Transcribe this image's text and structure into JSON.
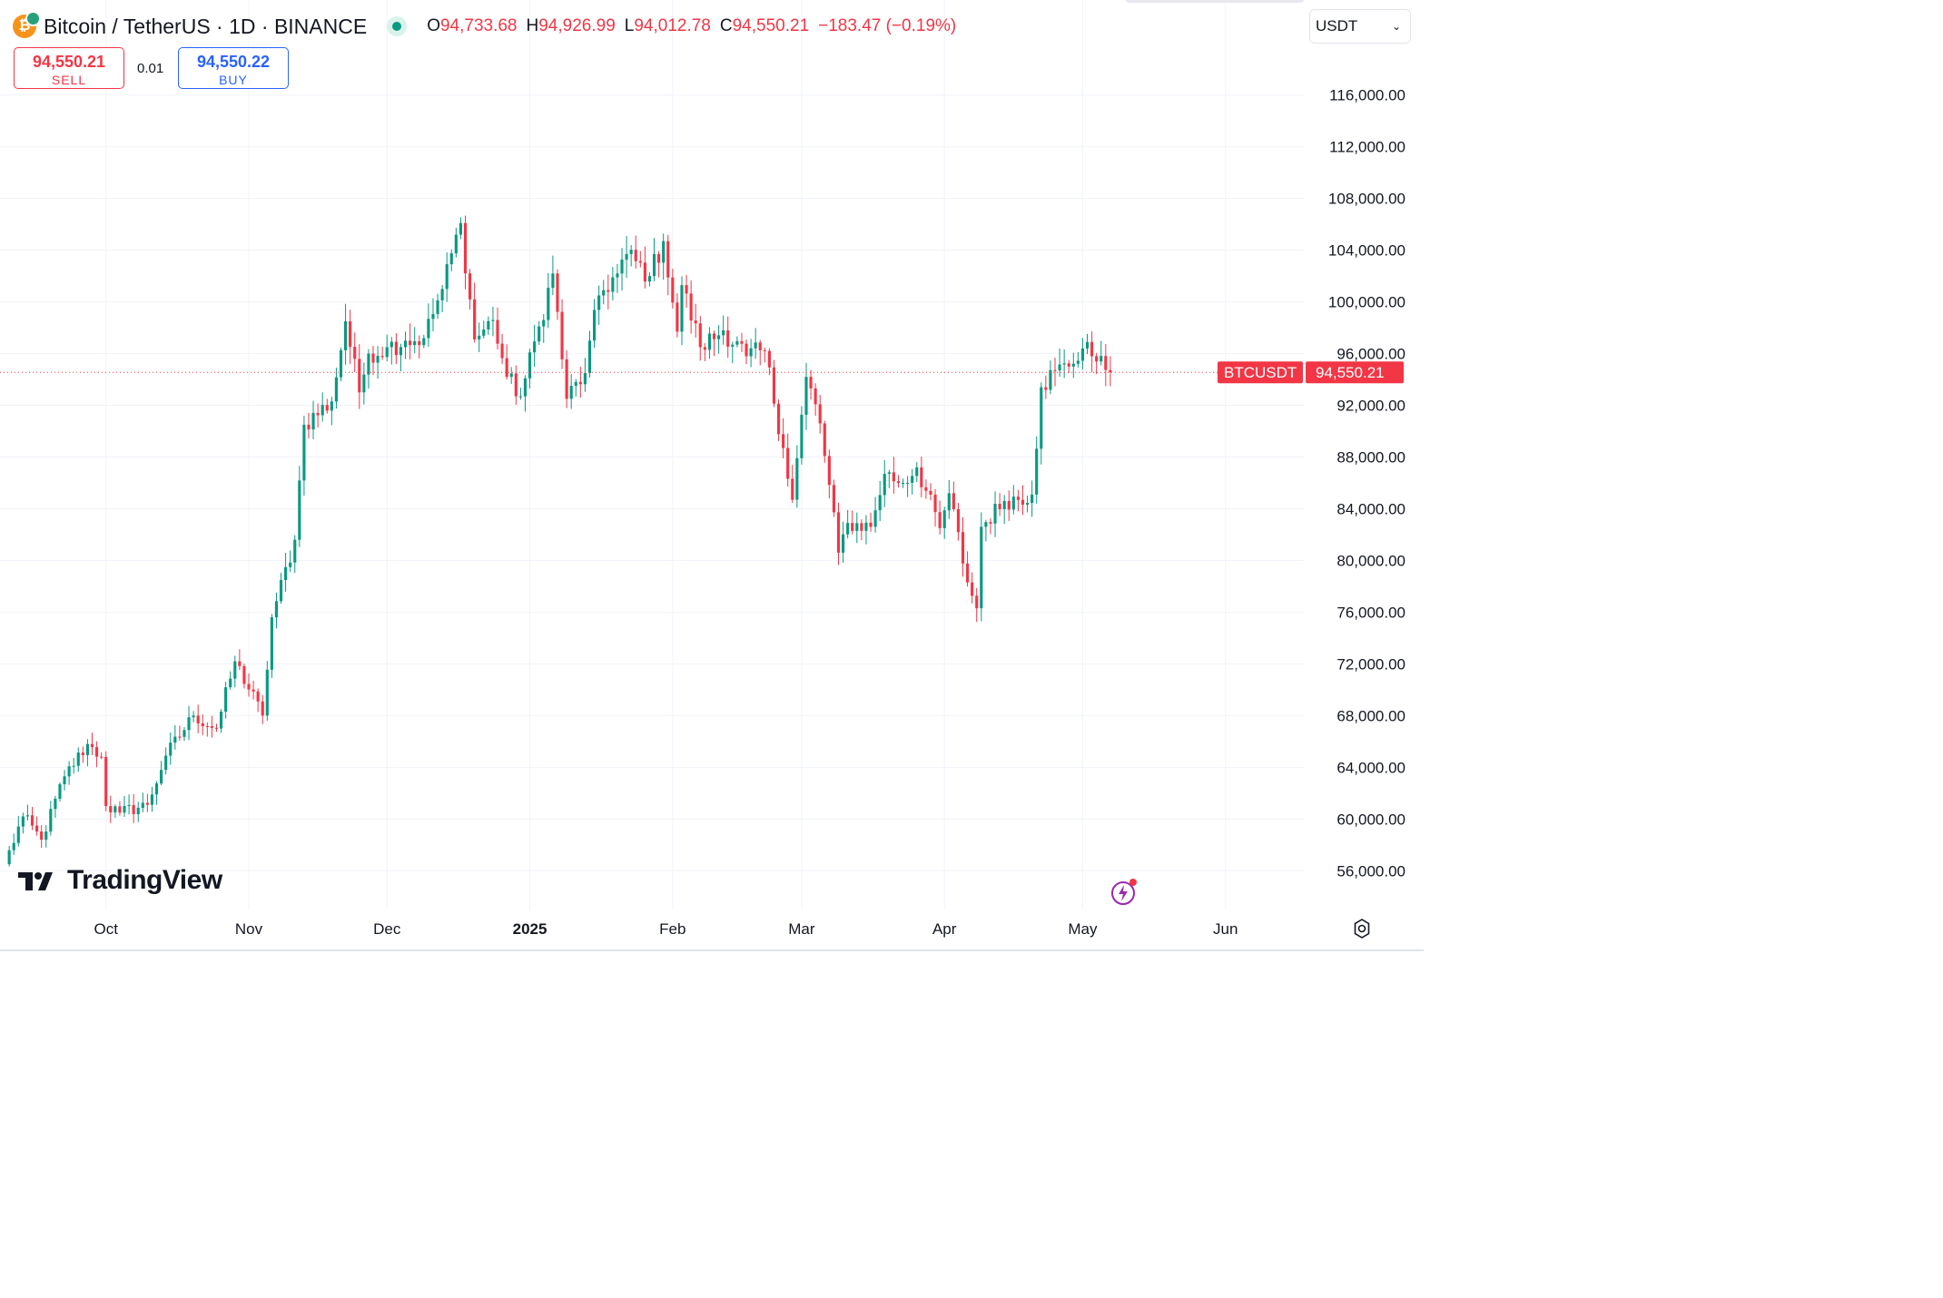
{
  "header": {
    "title": "Bitcoin / TetherUS · 1D · BINANCE",
    "coin_glyph": "₿",
    "ohlc": {
      "o_label": "O",
      "o_value": "94,733.68",
      "h_label": "H",
      "h_value": "94,926.99",
      "l_label": "L",
      "l_value": "94,012.78",
      "c_label": "C",
      "c_value": "94,550.21",
      "change": "−183.47 (−0.19%)"
    },
    "colors": {
      "up": "#089981",
      "down": "#f23645",
      "buy": "#2962ff"
    }
  },
  "trade": {
    "sell_price": "94,550.21",
    "sell_label": "SELL",
    "spread": "0.01",
    "buy_price": "94,550.22",
    "buy_label": "BUY"
  },
  "currency_select": {
    "value": "USDT"
  },
  "branding": {
    "logo_text": "TradingView"
  },
  "icons": {
    "bolt": "lightning-icon",
    "settings": "settings-gear-icon",
    "logo": "tradingview-logo-icon"
  },
  "chart_data": {
    "type": "candlestick",
    "symbol_label": "BTCUSDT",
    "last_price_label": "94,550.21",
    "last_price": 94550.21,
    "y_range": [
      53000,
      119000
    ],
    "y_ticks": [
      {
        "v": 116000,
        "label": "116,000.00"
      },
      {
        "v": 112000,
        "label": "112,000.00"
      },
      {
        "v": 108000,
        "label": "108,000.00"
      },
      {
        "v": 104000,
        "label": "104,000.00"
      },
      {
        "v": 100000,
        "label": "100,000.00"
      },
      {
        "v": 96000,
        "label": "96,000.00"
      },
      {
        "v": 92000,
        "label": "92,000.00"
      },
      {
        "v": 88000,
        "label": "88,000.00"
      },
      {
        "v": 84000,
        "label": "84,000.00"
      },
      {
        "v": 80000,
        "label": "80,000.00"
      },
      {
        "v": 76000,
        "label": "76,000.00"
      },
      {
        "v": 72000,
        "label": "72,000.00"
      },
      {
        "v": 68000,
        "label": "68,000.00"
      },
      {
        "v": 64000,
        "label": "64,000.00"
      },
      {
        "v": 60000,
        "label": "60,000.00"
      },
      {
        "v": 56000,
        "label": "56,000.00"
      }
    ],
    "x_range": [
      "2024-09-08",
      "2025-06-18"
    ],
    "x_ticks": [
      {
        "date": "2024-10-01",
        "label": "Oct",
        "bold": false
      },
      {
        "date": "2024-11-01",
        "label": "Nov",
        "bold": false
      },
      {
        "date": "2024-12-01",
        "label": "Dec",
        "bold": false
      },
      {
        "date": "2025-01-01",
        "label": "2025",
        "bold": true
      },
      {
        "date": "2025-02-01",
        "label": "Feb",
        "bold": false
      },
      {
        "date": "2025-03-01",
        "label": "Mar",
        "bold": false
      },
      {
        "date": "2025-04-01",
        "label": "Apr",
        "bold": false
      },
      {
        "date": "2025-05-01",
        "label": "May",
        "bold": false
      },
      {
        "date": "2025-06-01",
        "label": "Jun",
        "bold": false
      }
    ],
    "start_date": "2024-09-09",
    "anchors": [
      [
        "2024-09-09",
        56500
      ],
      [
        "2024-09-13",
        60200
      ],
      [
        "2024-09-17",
        58400
      ],
      [
        "2024-09-22",
        63300
      ],
      [
        "2024-09-27",
        65800
      ],
      [
        "2024-09-30",
        64800
      ],
      [
        "2024-10-01",
        61000
      ],
      [
        "2024-10-04",
        60500
      ],
      [
        "2024-10-10",
        61100
      ],
      [
        "2024-10-14",
        64900
      ],
      [
        "2024-10-20",
        68000
      ],
      [
        "2024-10-25",
        67000
      ],
      [
        "2024-10-29",
        72200
      ],
      [
        "2024-11-04",
        68000
      ],
      [
        "2024-11-06",
        75600
      ],
      [
        "2024-11-11",
        81600
      ],
      [
        "2024-11-13",
        90500
      ],
      [
        "2024-11-19",
        92300
      ],
      [
        "2024-11-22",
        98500
      ],
      [
        "2024-11-25",
        93000
      ],
      [
        "2024-11-27",
        96000
      ],
      [
        "2024-12-01",
        96500
      ],
      [
        "2024-12-05",
        97000
      ],
      [
        "2024-12-09",
        97200
      ],
      [
        "2024-12-13",
        101000
      ],
      [
        "2024-12-17",
        106100
      ],
      [
        "2024-12-20",
        97100
      ],
      [
        "2024-12-24",
        98600
      ],
      [
        "2024-12-27",
        94200
      ],
      [
        "2024-12-30",
        92700
      ],
      [
        "2025-01-03",
        98100
      ],
      [
        "2025-01-06",
        102200
      ],
      [
        "2025-01-09",
        92500
      ],
      [
        "2025-01-13",
        94500
      ],
      [
        "2025-01-16",
        100500
      ],
      [
        "2025-01-20",
        102200
      ],
      [
        "2025-01-22",
        103700
      ],
      [
        "2025-01-27",
        102000
      ],
      [
        "2025-01-30",
        104700
      ],
      [
        "2025-02-02",
        97700
      ],
      [
        "2025-02-03",
        101300
      ],
      [
        "2025-02-07",
        96500
      ],
      [
        "2025-02-12",
        97800
      ],
      [
        "2025-02-17",
        95800
      ],
      [
        "2025-02-21",
        96200
      ],
      [
        "2025-02-25",
        88700
      ],
      [
        "2025-02-27",
        84700
      ],
      [
        "2025-03-02",
        94200
      ],
      [
        "2025-03-05",
        90600
      ],
      [
        "2025-03-09",
        80600
      ],
      [
        "2025-03-11",
        82900
      ],
      [
        "2025-03-16",
        82600
      ],
      [
        "2025-03-19",
        86700
      ],
      [
        "2025-03-23",
        86000
      ],
      [
        "2025-03-26",
        87200
      ],
      [
        "2025-03-31",
        82500
      ],
      [
        "2025-04-02",
        85200
      ],
      [
        "2025-04-06",
        78300
      ],
      [
        "2025-04-08",
        76300
      ],
      [
        "2025-04-09",
        82600
      ],
      [
        "2025-04-14",
        84600
      ],
      [
        "2025-04-20",
        85100
      ],
      [
        "2025-04-22",
        93400
      ],
      [
        "2025-04-25",
        94700
      ],
      [
        "2025-04-28",
        95000
      ],
      [
        "2025-05-01",
        96400
      ],
      [
        "2025-05-02",
        96900
      ],
      [
        "2025-05-03",
        95800
      ],
      [
        "2025-05-06",
        94733.68
      ],
      [
        "2025-05-07",
        94550.21
      ]
    ]
  }
}
